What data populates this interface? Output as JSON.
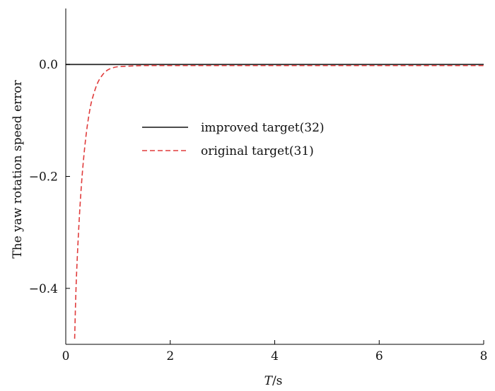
{
  "chart_data": {
    "type": "line",
    "title": "",
    "xlabel_italic": "T",
    "xlabel_unit": "/s",
    "ylabel": "The yaw rotation speed error",
    "xlim": [
      0,
      8
    ],
    "ylim": [
      -0.5,
      0.1
    ],
    "xticks": [
      0,
      2,
      4,
      6,
      8
    ],
    "xtick_labels": [
      "0",
      "2",
      "4",
      "6",
      "8"
    ],
    "yticks": [
      0.0,
      -0.2,
      -0.4
    ],
    "ytick_labels": [
      "0.0",
      "−0.2",
      "−0.4"
    ],
    "grid": false,
    "legend_position": "center-left",
    "series": [
      {
        "name": "improved target(32)",
        "color": "#333333",
        "style": "solid",
        "x": [
          0,
          1,
          2,
          3,
          4,
          5,
          6,
          7,
          8
        ],
        "y": [
          0.0,
          0.0,
          0.0,
          0.0,
          0.0,
          0.0,
          0.0,
          0.0,
          0.0
        ]
      },
      {
        "name": "original target(31)",
        "color": "#e03c3c",
        "style": "dashed",
        "x": [
          0.17,
          0.2,
          0.25,
          0.3,
          0.35,
          0.4,
          0.45,
          0.5,
          0.6,
          0.7,
          0.8,
          0.9,
          1.0,
          1.2,
          1.5,
          2.0,
          3.0,
          4.0,
          5.0,
          6.0,
          7.0,
          8.0
        ],
        "y": [
          -0.49,
          -0.39,
          -0.29,
          -0.215,
          -0.16,
          -0.118,
          -0.087,
          -0.064,
          -0.035,
          -0.019,
          -0.01,
          -0.006,
          -0.004,
          -0.003,
          -0.002,
          -0.002,
          -0.002,
          -0.002,
          -0.002,
          -0.002,
          -0.002,
          -0.002
        ]
      }
    ]
  }
}
